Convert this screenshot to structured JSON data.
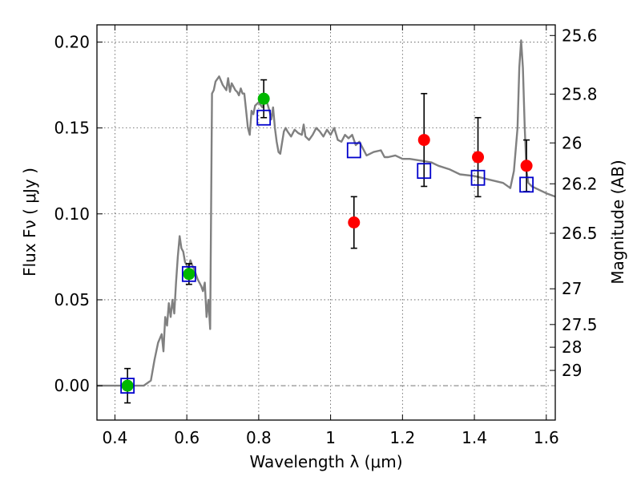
{
  "chart_data": {
    "type": "scatter",
    "title": "",
    "xlabel": "Wavelength  λ (μm)",
    "ylabel": "Flux  Fν  ( μJy )",
    "y2label": "Magnitude (AB)",
    "xlim": [
      0.35,
      1.625
    ],
    "ylim": [
      -0.02,
      0.21
    ],
    "grid": true,
    "legend": "none",
    "x_ticks": [
      {
        "v": 0.4,
        "label": "0.4"
      },
      {
        "v": 0.6,
        "label": "0.6"
      },
      {
        "v": 0.8,
        "label": "0.8"
      },
      {
        "v": 1.0,
        "label": "1"
      },
      {
        "v": 1.2,
        "label": "1.2"
      },
      {
        "v": 1.4,
        "label": "1.4"
      },
      {
        "v": 1.6,
        "label": "1.6"
      }
    ],
    "y_ticks": [
      {
        "v": 0.0,
        "label": "0.00"
      },
      {
        "v": 0.05,
        "label": "0.05"
      },
      {
        "v": 0.1,
        "label": "0.10"
      },
      {
        "v": 0.15,
        "label": "0.15"
      },
      {
        "v": 0.2,
        "label": "0.20"
      }
    ],
    "mag_ticks": [
      {
        "v": 0.2038,
        "label": "25.6"
      },
      {
        "v": 0.1697,
        "label": "25.8"
      },
      {
        "v": 0.1413,
        "label": "26"
      },
      {
        "v": 0.1175,
        "label": "26.2"
      },
      {
        "v": 0.0887,
        "label": "26.5"
      },
      {
        "v": 0.0564,
        "label": "27"
      },
      {
        "v": 0.0356,
        "label": "27.5"
      },
      {
        "v": 0.0224,
        "label": "28"
      },
      {
        "v": 0.0089,
        "label": "29"
      }
    ],
    "series": [
      {
        "kind": "line",
        "color": "#808080",
        "x": [
          0.35,
          0.48,
          0.5,
          0.51,
          0.52,
          0.53,
          0.535,
          0.54,
          0.545,
          0.55,
          0.555,
          0.56,
          0.565,
          0.57,
          0.575,
          0.58,
          0.585,
          0.59,
          0.595,
          0.6,
          0.605,
          0.61,
          0.615,
          0.62,
          0.625,
          0.63,
          0.64,
          0.645,
          0.65,
          0.655,
          0.66,
          0.665,
          0.67,
          0.675,
          0.68,
          0.69,
          0.7,
          0.71,
          0.715,
          0.72,
          0.725,
          0.73,
          0.735,
          0.74,
          0.745,
          0.75,
          0.755,
          0.76,
          0.765,
          0.77,
          0.775,
          0.78,
          0.785,
          0.79,
          0.8,
          0.81,
          0.82,
          0.83,
          0.835,
          0.84,
          0.845,
          0.85,
          0.855,
          0.86,
          0.87,
          0.875,
          0.88,
          0.89,
          0.9,
          0.91,
          0.92,
          0.925,
          0.93,
          0.94,
          0.95,
          0.96,
          0.97,
          0.98,
          0.99,
          1.0,
          1.01,
          1.02,
          1.03,
          1.04,
          1.05,
          1.06,
          1.07,
          1.08,
          1.1,
          1.12,
          1.14,
          1.15,
          1.16,
          1.18,
          1.2,
          1.22,
          1.25,
          1.28,
          1.3,
          1.33,
          1.36,
          1.4,
          1.44,
          1.48,
          1.5,
          1.51,
          1.52,
          1.525,
          1.53,
          1.535,
          1.54,
          1.545,
          1.55,
          1.56,
          1.58,
          1.6,
          1.625
        ],
        "y": [
          0.0,
          0.0,
          0.003,
          0.015,
          0.025,
          0.03,
          0.02,
          0.04,
          0.035,
          0.048,
          0.04,
          0.05,
          0.042,
          0.06,
          0.075,
          0.087,
          0.08,
          0.078,
          0.072,
          0.07,
          0.068,
          0.073,
          0.07,
          0.068,
          0.065,
          0.062,
          0.058,
          0.055,
          0.06,
          0.04,
          0.05,
          0.033,
          0.17,
          0.172,
          0.177,
          0.18,
          0.175,
          0.172,
          0.179,
          0.171,
          0.176,
          0.174,
          0.172,
          0.171,
          0.169,
          0.173,
          0.17,
          0.17,
          0.16,
          0.15,
          0.146,
          0.16,
          0.158,
          0.163,
          0.165,
          0.162,
          0.167,
          0.16,
          0.155,
          0.162,
          0.15,
          0.142,
          0.136,
          0.135,
          0.148,
          0.15,
          0.148,
          0.145,
          0.149,
          0.147,
          0.146,
          0.152,
          0.145,
          0.143,
          0.146,
          0.15,
          0.148,
          0.145,
          0.149,
          0.146,
          0.15,
          0.143,
          0.142,
          0.146,
          0.144,
          0.146,
          0.14,
          0.142,
          0.134,
          0.136,
          0.137,
          0.133,
          0.133,
          0.134,
          0.132,
          0.132,
          0.131,
          0.13,
          0.128,
          0.126,
          0.123,
          0.122,
          0.12,
          0.118,
          0.115,
          0.125,
          0.15,
          0.185,
          0.201,
          0.185,
          0.15,
          0.125,
          0.118,
          0.116,
          0.114,
          0.112,
          0.11
        ]
      },
      {
        "kind": "points",
        "marker": "circle",
        "color": "#00b800",
        "points": [
          {
            "x": 0.435,
            "y": 0.0,
            "err": 0.01
          },
          {
            "x": 0.606,
            "y": 0.065,
            "err": 0.006
          },
          {
            "x": 0.814,
            "y": 0.167,
            "err": 0.011
          }
        ]
      },
      {
        "kind": "points",
        "marker": "circle",
        "color": "#ff0000",
        "points": [
          {
            "x": 1.065,
            "y": 0.095,
            "err": 0.015
          },
          {
            "x": 1.26,
            "y": 0.143,
            "err": 0.027
          },
          {
            "x": 1.41,
            "y": 0.133,
            "err": 0.023
          },
          {
            "x": 1.545,
            "y": 0.128,
            "err": 0.015
          }
        ]
      },
      {
        "kind": "points",
        "marker": "square-open",
        "color": "#0000cc",
        "points": [
          {
            "x": 0.435,
            "y": 0.0
          },
          {
            "x": 0.606,
            "y": 0.065
          },
          {
            "x": 0.814,
            "y": 0.156
          },
          {
            "x": 1.065,
            "y": 0.137
          },
          {
            "x": 1.26,
            "y": 0.125
          },
          {
            "x": 1.41,
            "y": 0.121
          },
          {
            "x": 1.545,
            "y": 0.117
          }
        ]
      }
    ]
  }
}
